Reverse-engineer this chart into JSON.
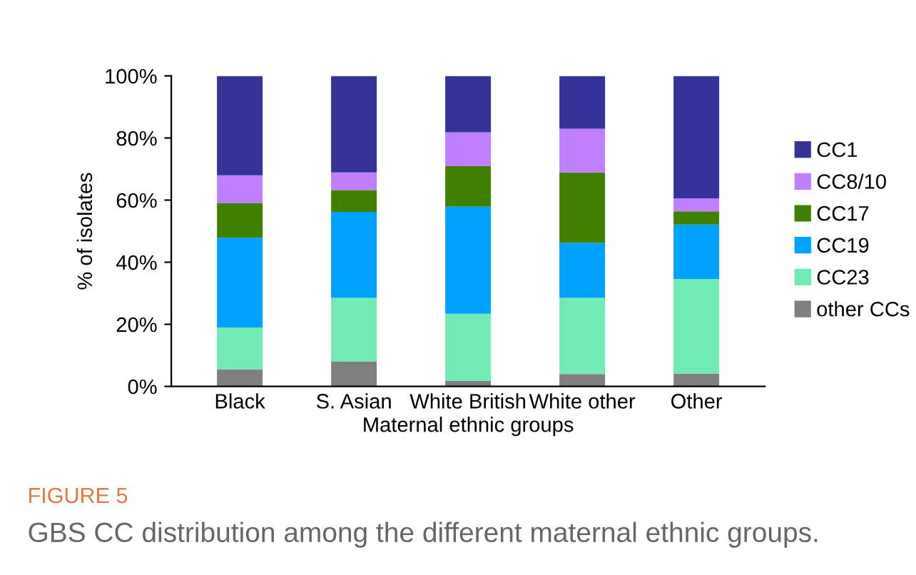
{
  "chart_data": {
    "type": "bar",
    "stacked": true,
    "ylabel": "% of isolates",
    "xlabel": "Maternal ethnic groups",
    "categories": [
      "Black",
      "S. Asian",
      "White British",
      "White other",
      "Other"
    ],
    "series": [
      {
        "name": "other CCs",
        "color": "#808080",
        "values": [
          5.5,
          8.1,
          1.8,
          4.0,
          4.1
        ]
      },
      {
        "name": "CC23",
        "color": "#70ebb4",
        "values": [
          13.5,
          20.4,
          21.6,
          24.5,
          30.5
        ]
      },
      {
        "name": "CC19",
        "color": "#00a2ff",
        "values": [
          28.9,
          27.7,
          34.5,
          17.7,
          17.5
        ]
      },
      {
        "name": "CC17",
        "color": "#3f8000",
        "values": [
          11.2,
          7.0,
          13.0,
          22.7,
          4.3
        ]
      },
      {
        "name": "CC8/10",
        "color": "#bf7fff",
        "values": [
          8.9,
          5.7,
          10.9,
          14.1,
          4.2
        ]
      },
      {
        "name": "CC1",
        "color": "#333399",
        "values": [
          32.0,
          31.1,
          18.2,
          17.0,
          39.4
        ]
      }
    ],
    "ylim": [
      0,
      100
    ],
    "yticks": [
      {
        "value": 0,
        "label": "0%"
      },
      {
        "value": 20,
        "label": "20%"
      },
      {
        "value": 40,
        "label": "40%"
      },
      {
        "value": 60,
        "label": "60%"
      },
      {
        "value": 80,
        "label": "80%"
      },
      {
        "value": 100,
        "label": "100%"
      }
    ],
    "grid": false,
    "legend": "right",
    "annotations": [
      "FIGURE 5",
      "GBS CC distribution among the different maternal ethnic groups."
    ]
  }
}
